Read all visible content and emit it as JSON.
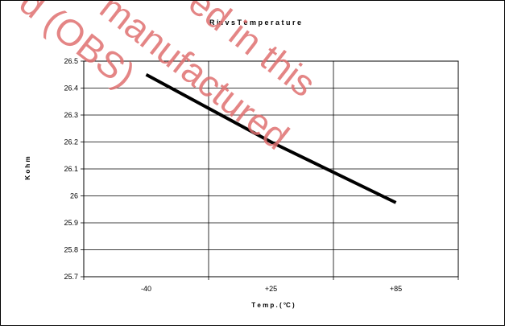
{
  "chart_data": {
    "type": "line",
    "title": "R in  v s  T e m p e r a t u r e",
    "xlabel": "T e m p . ( °C )",
    "ylabel": "K o h m",
    "categories": [
      "-40",
      "+25",
      "+85"
    ],
    "y_ticks": [
      "26.5",
      "26.4",
      "26.3",
      "26.2",
      "26.1",
      "26",
      "25.9",
      "25.8",
      "25.7"
    ],
    "ylim": [
      25.7,
      26.5
    ],
    "grid": true,
    "legend": "none",
    "series": [
      {
        "values": [
          26.45,
          26.2,
          25.975
        ]
      }
    ],
    "line_color": "#000000"
  },
  "watermark": {
    "lines": [
      "d (OBS)",
      "manufactured",
      "ed in this"
    ],
    "color": "#e07070"
  }
}
